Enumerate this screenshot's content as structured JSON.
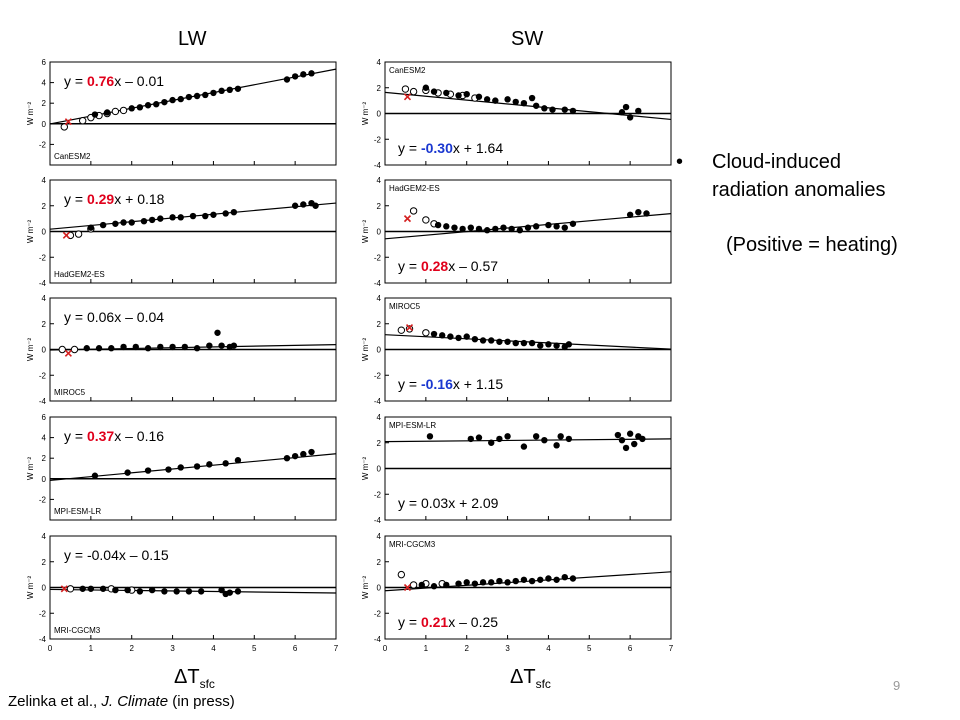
{
  "headers": {
    "lw": "LW",
    "sw": "SW"
  },
  "bullet": {
    "symbol": "•",
    "line1": "Cloud-induced",
    "line2": "radiation anomalies",
    "note": "(Positive = heating)"
  },
  "xaxis": {
    "main": "ΔT",
    "sub": "sfc"
  },
  "citation": {
    "authors": "Zelinka et al., ",
    "journal": "J. Climate",
    "status": " (in press)"
  },
  "page_number": "9",
  "colors": {
    "red": "#e0001b",
    "blue": "#1a37d0",
    "marker_red": "#d42020"
  },
  "chart_data": [
    {
      "type": "scatter",
      "panel": "LW",
      "model": "CanESM2",
      "slope": 0.76,
      "intercept": -0.01,
      "eq": {
        "prefix": "y = ",
        "slope": "0.76",
        "mid": "x – ",
        "intercept": "0.01",
        "slope_color": "red"
      },
      "ylim": [
        -4,
        6
      ],
      "yticks": [
        -2,
        0,
        2,
        4,
        6
      ],
      "xlim": [
        0,
        7
      ],
      "ylabel": "W m⁻²",
      "open": [
        [
          0.35,
          -0.3
        ],
        [
          0.8,
          0.3
        ],
        [
          1.0,
          0.6
        ],
        [
          1.2,
          0.8
        ],
        [
          1.4,
          1.0
        ],
        [
          1.6,
          1.2
        ],
        [
          1.8,
          1.3
        ]
      ],
      "filled": [
        [
          1.1,
          0.9
        ],
        [
          1.4,
          1.1
        ],
        [
          2.0,
          1.5
        ],
        [
          2.2,
          1.6
        ],
        [
          2.4,
          1.8
        ],
        [
          2.6,
          1.9
        ],
        [
          2.8,
          2.1
        ],
        [
          3.0,
          2.3
        ],
        [
          3.2,
          2.4
        ],
        [
          3.4,
          2.6
        ],
        [
          3.6,
          2.7
        ],
        [
          3.8,
          2.8
        ],
        [
          4.0,
          3.0
        ],
        [
          4.2,
          3.2
        ],
        [
          4.4,
          3.3
        ],
        [
          4.6,
          3.4
        ],
        [
          5.8,
          4.3
        ],
        [
          6.0,
          4.6
        ],
        [
          6.2,
          4.8
        ],
        [
          6.4,
          4.9
        ]
      ],
      "cross": [
        0.45,
        0.2
      ]
    },
    {
      "type": "scatter",
      "panel": "LW",
      "model": "HadGEM2-ES",
      "slope": 0.29,
      "intercept": 0.18,
      "eq": {
        "prefix": "y = ",
        "slope": "0.29",
        "mid": "x + ",
        "intercept": "0.18",
        "slope_color": "red"
      },
      "ylim": [
        -4,
        4
      ],
      "yticks": [
        -4,
        -2,
        0,
        2,
        4
      ],
      "xlim": [
        0,
        7
      ],
      "ylabel": "W m⁻²",
      "open": [
        [
          0.5,
          -0.3
        ],
        [
          0.7,
          -0.2
        ],
        [
          1.0,
          0.2
        ]
      ],
      "filled": [
        [
          1.0,
          0.3
        ],
        [
          1.3,
          0.5
        ],
        [
          1.6,
          0.6
        ],
        [
          1.8,
          0.7
        ],
        [
          2.0,
          0.7
        ],
        [
          2.3,
          0.8
        ],
        [
          2.5,
          0.9
        ],
        [
          2.7,
          1.0
        ],
        [
          3.0,
          1.1
        ],
        [
          3.2,
          1.1
        ],
        [
          3.5,
          1.2
        ],
        [
          3.8,
          1.2
        ],
        [
          4.0,
          1.3
        ],
        [
          4.3,
          1.4
        ],
        [
          4.5,
          1.5
        ],
        [
          6.0,
          2.0
        ],
        [
          6.2,
          2.1
        ],
        [
          6.4,
          2.2
        ],
        [
          6.5,
          2.0
        ]
      ],
      "cross": [
        0.4,
        -0.3
      ]
    },
    {
      "type": "scatter",
      "panel": "LW",
      "model": "MIROC5",
      "slope": 0.06,
      "intercept": -0.04,
      "eq": {
        "prefix": "y = ",
        "slope": "0.06",
        "mid": "x – ",
        "intercept": "0.04",
        "slope_color": "none"
      },
      "ylim": [
        -4,
        4
      ],
      "yticks": [
        -4,
        -2,
        0,
        2,
        4
      ],
      "xlim": [
        0,
        7
      ],
      "ylabel": "W m⁻²",
      "open": [
        [
          0.3,
          0.0
        ],
        [
          0.6,
          0.0
        ]
      ],
      "filled": [
        [
          0.9,
          0.1
        ],
        [
          1.2,
          0.1
        ],
        [
          1.5,
          0.1
        ],
        [
          1.8,
          0.2
        ],
        [
          2.1,
          0.2
        ],
        [
          2.4,
          0.1
        ],
        [
          2.7,
          0.2
        ],
        [
          3.0,
          0.2
        ],
        [
          3.3,
          0.2
        ],
        [
          3.6,
          0.1
        ],
        [
          3.9,
          0.3
        ],
        [
          4.1,
          1.3
        ],
        [
          4.2,
          0.3
        ],
        [
          4.4,
          0.2
        ],
        [
          4.5,
          0.3
        ]
      ],
      "cross": [
        0.45,
        -0.3
      ]
    },
    {
      "type": "scatter",
      "panel": "LW",
      "model": "MPI-ESM-LR",
      "slope": 0.37,
      "intercept": -0.16,
      "eq": {
        "prefix": "y = ",
        "slope": "0.37",
        "mid": "x – ",
        "intercept": "0.16",
        "slope_color": "red"
      },
      "ylim": [
        -4,
        6
      ],
      "yticks": [
        -2,
        0,
        2,
        4,
        6
      ],
      "xlim": [
        0,
        7
      ],
      "ylabel": "W m⁻²",
      "open": [],
      "filled": [
        [
          1.1,
          0.3
        ],
        [
          1.9,
          0.6
        ],
        [
          2.4,
          0.8
        ],
        [
          2.9,
          0.9
        ],
        [
          3.2,
          1.1
        ],
        [
          3.6,
          1.2
        ],
        [
          3.9,
          1.4
        ],
        [
          4.3,
          1.5
        ],
        [
          4.6,
          1.8
        ],
        [
          5.8,
          2.0
        ],
        [
          6.0,
          2.2
        ],
        [
          6.2,
          2.4
        ],
        [
          6.4,
          2.6
        ]
      ],
      "cross": null
    },
    {
      "type": "scatter",
      "panel": "LW",
      "model": "MRI-CGCM3",
      "slope": -0.04,
      "intercept": -0.15,
      "eq": {
        "prefix": "y = ",
        "slope": "-0.04",
        "mid": "x – ",
        "intercept": "0.15",
        "slope_color": "none"
      },
      "ylim": [
        -4,
        4
      ],
      "yticks": [
        -4,
        -2,
        0,
        2,
        4
      ],
      "xlim": [
        0,
        7
      ],
      "ylabel": "W m⁻²",
      "open": [
        [
          0.5,
          -0.1
        ],
        [
          1.5,
          -0.1
        ],
        [
          2.0,
          -0.2
        ]
      ],
      "filled": [
        [
          0.8,
          -0.1
        ],
        [
          1.0,
          -0.1
        ],
        [
          1.3,
          -0.1
        ],
        [
          1.6,
          -0.2
        ],
        [
          1.9,
          -0.2
        ],
        [
          2.2,
          -0.3
        ],
        [
          2.5,
          -0.2
        ],
        [
          2.8,
          -0.3
        ],
        [
          3.1,
          -0.3
        ],
        [
          3.4,
          -0.3
        ],
        [
          3.7,
          -0.3
        ],
        [
          4.2,
          -0.2
        ],
        [
          4.3,
          -0.5
        ],
        [
          4.4,
          -0.4
        ],
        [
          4.6,
          -0.3
        ]
      ],
      "cross": [
        0.35,
        -0.1
      ]
    },
    {
      "type": "scatter",
      "panel": "SW",
      "model": "CanESM2",
      "slope": -0.3,
      "intercept": 1.64,
      "eq": {
        "prefix": "y = ",
        "slope": "-0.30",
        "mid": "x + ",
        "intercept": "1.64",
        "slope_color": "blue"
      },
      "ylim": [
        -4,
        4
      ],
      "yticks": [
        -4,
        -2,
        0,
        2,
        4
      ],
      "xlim": [
        0,
        7
      ],
      "ylabel": "W m⁻²",
      "open": [
        [
          0.5,
          1.9
        ],
        [
          0.7,
          1.7
        ],
        [
          1.0,
          1.8
        ],
        [
          1.3,
          1.6
        ],
        [
          1.6,
          1.5
        ],
        [
          1.9,
          1.4
        ],
        [
          2.2,
          1.2
        ]
      ],
      "filled": [
        [
          1.0,
          2.0
        ],
        [
          1.2,
          1.7
        ],
        [
          1.5,
          1.6
        ],
        [
          1.8,
          1.4
        ],
        [
          2.0,
          1.5
        ],
        [
          2.3,
          1.3
        ],
        [
          2.5,
          1.1
        ],
        [
          2.7,
          1.0
        ],
        [
          3.0,
          1.1
        ],
        [
          3.2,
          0.9
        ],
        [
          3.4,
          0.8
        ],
        [
          3.7,
          0.6
        ],
        [
          3.9,
          0.4
        ],
        [
          4.1,
          0.3
        ],
        [
          4.4,
          0.3
        ],
        [
          4.6,
          0.2
        ],
        [
          3.6,
          1.2
        ],
        [
          5.8,
          0.1
        ],
        [
          6.0,
          -0.3
        ],
        [
          6.2,
          0.2
        ],
        [
          5.9,
          0.5
        ]
      ],
      "cross": [
        0.55,
        1.3
      ]
    },
    {
      "type": "scatter",
      "panel": "SW",
      "model": "HadGEM2-ES",
      "slope": 0.28,
      "intercept": -0.57,
      "eq": {
        "prefix": "y = ",
        "slope": "0.28",
        "mid": "x – ",
        "intercept": "0.57",
        "slope_color": "red"
      },
      "ylim": [
        -4,
        4
      ],
      "yticks": [
        -4,
        -2,
        0,
        2,
        4
      ],
      "xlim": [
        0,
        7
      ],
      "ylabel": "W m⁻²",
      "open": [
        [
          0.7,
          1.6
        ],
        [
          1.0,
          0.9
        ],
        [
          1.2,
          0.6
        ]
      ],
      "filled": [
        [
          1.3,
          0.5
        ],
        [
          1.5,
          0.4
        ],
        [
          1.7,
          0.3
        ],
        [
          1.9,
          0.2
        ],
        [
          2.1,
          0.3
        ],
        [
          2.3,
          0.2
        ],
        [
          2.5,
          0.1
        ],
        [
          2.7,
          0.2
        ],
        [
          2.9,
          0.3
        ],
        [
          3.1,
          0.2
        ],
        [
          3.3,
          0.1
        ],
        [
          3.5,
          0.3
        ],
        [
          3.7,
          0.4
        ],
        [
          4.0,
          0.5
        ],
        [
          4.2,
          0.4
        ],
        [
          4.4,
          0.3
        ],
        [
          4.6,
          0.6
        ],
        [
          6.0,
          1.3
        ],
        [
          6.2,
          1.5
        ],
        [
          6.4,
          1.4
        ]
      ],
      "cross": [
        0.55,
        1.0
      ]
    },
    {
      "type": "scatter",
      "panel": "SW",
      "model": "MIROC5",
      "slope": -0.16,
      "intercept": 1.15,
      "eq": {
        "prefix": "y = ",
        "slope": "-0.16",
        "mid": "x + ",
        "intercept": "1.15",
        "slope_color": "blue"
      },
      "ylim": [
        -4,
        4
      ],
      "yticks": [
        -4,
        -2,
        0,
        2,
        4
      ],
      "xlim": [
        0,
        7
      ],
      "ylabel": "W m⁻²",
      "open": [
        [
          0.4,
          1.5
        ],
        [
          0.6,
          1.6
        ],
        [
          1.0,
          1.3
        ]
      ],
      "filled": [
        [
          1.2,
          1.2
        ],
        [
          1.4,
          1.1
        ],
        [
          1.6,
          1.0
        ],
        [
          1.8,
          0.9
        ],
        [
          2.0,
          1.0
        ],
        [
          2.2,
          0.8
        ],
        [
          2.4,
          0.7
        ],
        [
          2.6,
          0.7
        ],
        [
          2.8,
          0.6
        ],
        [
          3.0,
          0.6
        ],
        [
          3.2,
          0.5
        ],
        [
          3.4,
          0.5
        ],
        [
          3.6,
          0.5
        ],
        [
          3.8,
          0.3
        ],
        [
          4.0,
          0.4
        ],
        [
          4.2,
          0.3
        ],
        [
          4.4,
          0.2
        ],
        [
          4.5,
          0.4
        ]
      ],
      "cross": [
        0.6,
        1.7
      ]
    },
    {
      "type": "scatter",
      "panel": "SW",
      "model": "MPI-ESM-LR",
      "slope": 0.03,
      "intercept": 2.09,
      "eq": {
        "prefix": "y = ",
        "slope": "0.03",
        "mid": "x + ",
        "intercept": "2.09",
        "slope_color": "none"
      },
      "ylim": [
        -4,
        4
      ],
      "yticks": [
        -4,
        -2,
        0,
        2,
        4
      ],
      "xlim": [
        0,
        7
      ],
      "ylabel": "W m⁻²",
      "open": [],
      "filled": [
        [
          1.1,
          2.5
        ],
        [
          2.1,
          2.3
        ],
        [
          2.3,
          2.4
        ],
        [
          2.6,
          2.0
        ],
        [
          2.8,
          2.3
        ],
        [
          3.0,
          2.5
        ],
        [
          3.4,
          1.7
        ],
        [
          3.7,
          2.5
        ],
        [
          3.9,
          2.2
        ],
        [
          4.2,
          1.8
        ],
        [
          4.3,
          2.5
        ],
        [
          4.5,
          2.3
        ],
        [
          5.7,
          2.6
        ],
        [
          5.8,
          2.2
        ],
        [
          5.9,
          1.6
        ],
        [
          6.0,
          2.7
        ],
        [
          6.1,
          1.9
        ],
        [
          6.2,
          2.5
        ],
        [
          6.3,
          2.3
        ]
      ],
      "cross": null
    },
    {
      "type": "scatter",
      "panel": "SW",
      "model": "MRI-CGCM3",
      "slope": 0.21,
      "intercept": -0.25,
      "eq": {
        "prefix": "y = ",
        "slope": "0.21",
        "mid": "x – ",
        "intercept": "0.25",
        "slope_color": "red"
      },
      "ylim": [
        -4,
        4
      ],
      "yticks": [
        -4,
        -2,
        0,
        2,
        4
      ],
      "xlim": [
        0,
        7
      ],
      "ylabel": "W m⁻²",
      "open": [
        [
          0.4,
          1.0
        ],
        [
          0.7,
          0.2
        ],
        [
          1.0,
          0.3
        ],
        [
          1.4,
          0.3
        ]
      ],
      "filled": [
        [
          0.9,
          0.2
        ],
        [
          1.2,
          0.1
        ],
        [
          1.5,
          0.2
        ],
        [
          1.8,
          0.3
        ],
        [
          2.0,
          0.4
        ],
        [
          2.2,
          0.3
        ],
        [
          2.4,
          0.4
        ],
        [
          2.6,
          0.4
        ],
        [
          2.8,
          0.5
        ],
        [
          3.0,
          0.4
        ],
        [
          3.2,
          0.5
        ],
        [
          3.4,
          0.6
        ],
        [
          3.6,
          0.5
        ],
        [
          3.8,
          0.6
        ],
        [
          4.0,
          0.7
        ],
        [
          4.2,
          0.6
        ],
        [
          4.4,
          0.8
        ],
        [
          4.6,
          0.7
        ]
      ],
      "cross": [
        0.55,
        0.0
      ]
    }
  ],
  "xticks": [
    0,
    1,
    2,
    3,
    4,
    5,
    6,
    7
  ]
}
